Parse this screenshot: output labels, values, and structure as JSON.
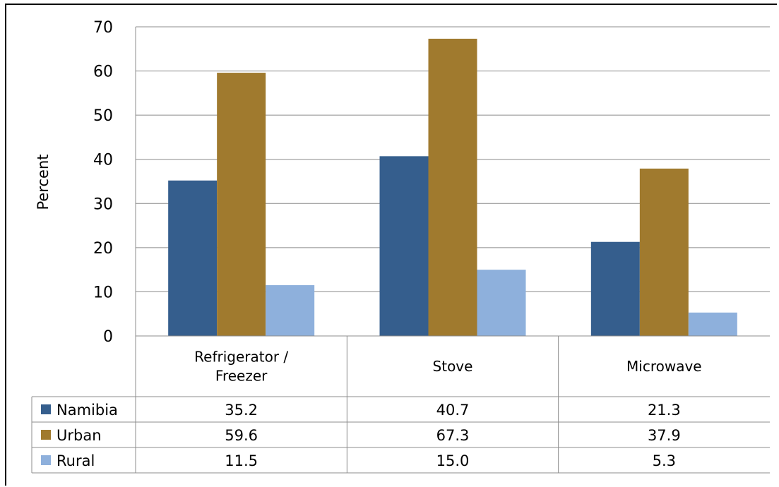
{
  "chart_data": {
    "type": "bar",
    "ylabel": "Percent",
    "ylim": [
      0,
      70
    ],
    "yticks": [
      0,
      10,
      20,
      30,
      40,
      50,
      60,
      70
    ],
    "grid": true,
    "categories": [
      {
        "lines": [
          "Refrigerator /",
          "Freezer"
        ]
      },
      {
        "lines": [
          "Stove"
        ]
      },
      {
        "lines": [
          "Microwave"
        ]
      }
    ],
    "series": [
      {
        "name": "Namibia",
        "color": "#355E8D",
        "values": [
          35.2,
          40.7,
          21.3
        ],
        "labels": [
          "35.2",
          "40.7",
          "21.3"
        ]
      },
      {
        "name": "Urban",
        "color": "#A07A2E",
        "values": [
          59.6,
          67.3,
          37.9
        ],
        "labels": [
          "59.6",
          "67.3",
          "37.9"
        ]
      },
      {
        "name": "Rural",
        "color": "#8EB0DC",
        "values": [
          11.5,
          15.0,
          5.3
        ],
        "labels": [
          "11.5",
          "15.0",
          "5.3"
        ]
      }
    ],
    "legend": "data-table"
  }
}
